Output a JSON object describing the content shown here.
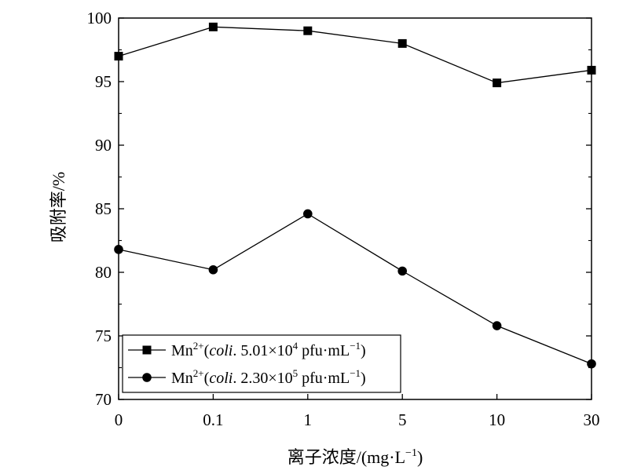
{
  "chart_data": {
    "type": "line",
    "categories": [
      "0",
      "0.1",
      "1",
      "5",
      "10",
      "30"
    ],
    "ylim": [
      70,
      100
    ],
    "y_ticks": [
      "70",
      "75",
      "80",
      "85",
      "90",
      "95",
      "100"
    ],
    "xlabel": "离子浓度/(mg·L",
    "xlabel_sup": "−1",
    "xlabel_tail": ")",
    "ylabel": "吸附率/%",
    "grid": false,
    "legend_position": "bottom-left",
    "series": [
      {
        "marker": "square",
        "values": [
          97.0,
          99.3,
          99.0,
          98.0,
          94.9,
          95.9
        ],
        "legend": {
          "prefix": "Mn",
          "sup1": "2+",
          "open": "(",
          "italic": "coli",
          "mid": ". 5.01×10",
          "sup2": "4",
          "unit": " pfu·mL",
          "sup3": "−1",
          "close": ")"
        }
      },
      {
        "marker": "circle",
        "values": [
          81.8,
          80.2,
          84.6,
          80.1,
          75.8,
          72.8
        ],
        "legend": {
          "prefix": "Mn",
          "sup1": "2+",
          "open": "(",
          "italic": "coli",
          "mid": ". 2.30×10",
          "sup2": "5",
          "unit": " pfu·mL",
          "sup3": "−1",
          "close": ")"
        }
      }
    ],
    "colors": {
      "line": "#000000",
      "marker": "#000000"
    }
  }
}
